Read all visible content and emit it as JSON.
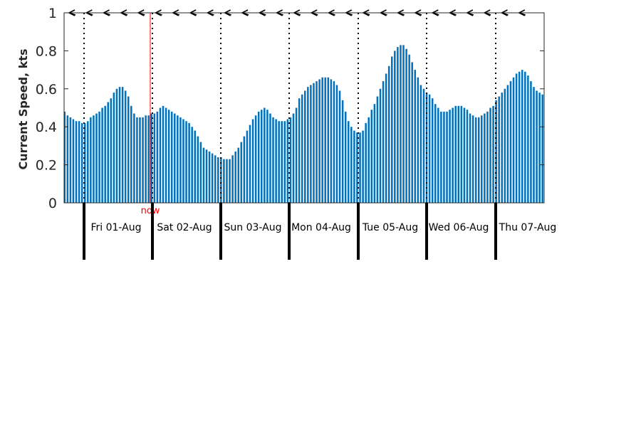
{
  "chart_data": {
    "type": "bar",
    "ylabel": "Current Speed, kts",
    "ylim": [
      0,
      1
    ],
    "yticks": [
      "0",
      "0.2",
      "0.4",
      "0.6",
      "0.8",
      "1"
    ],
    "days": [
      "Fri 01-Aug",
      "Sat 02-Aug",
      "Sun 03-Aug",
      "Mon 04-Aug",
      "Tue 05-Aug",
      "Wed 06-Aug",
      "Thu 07-Aug"
    ],
    "now_label": "now",
    "bar_color": "#0072bd",
    "now_color": "#ff0000",
    "values": [
      0.48,
      0.46,
      0.45,
      0.44,
      0.43,
      0.43,
      0.42,
      0.42,
      0.43,
      0.45,
      0.46,
      0.47,
      0.48,
      0.5,
      0.51,
      0.53,
      0.55,
      0.58,
      0.6,
      0.61,
      0.61,
      0.59,
      0.56,
      0.51,
      0.47,
      0.45,
      0.45,
      0.45,
      0.46,
      0.46,
      0.47,
      0.47,
      0.48,
      0.5,
      0.51,
      0.5,
      0.49,
      0.48,
      0.47,
      0.46,
      0.45,
      0.44,
      0.43,
      0.42,
      0.4,
      0.38,
      0.35,
      0.32,
      0.29,
      0.28,
      0.27,
      0.26,
      0.25,
      0.24,
      0.24,
      0.23,
      0.23,
      0.23,
      0.25,
      0.27,
      0.29,
      0.32,
      0.35,
      0.38,
      0.41,
      0.44,
      0.46,
      0.48,
      0.49,
      0.5,
      0.49,
      0.47,
      0.45,
      0.44,
      0.43,
      0.43,
      0.43,
      0.44,
      0.45,
      0.47,
      0.5,
      0.55,
      0.57,
      0.59,
      0.61,
      0.62,
      0.63,
      0.64,
      0.65,
      0.66,
      0.66,
      0.66,
      0.65,
      0.64,
      0.62,
      0.59,
      0.54,
      0.48,
      0.43,
      0.4,
      0.38,
      0.37,
      0.37,
      0.38,
      0.42,
      0.45,
      0.49,
      0.52,
      0.56,
      0.6,
      0.64,
      0.68,
      0.72,
      0.77,
      0.8,
      0.82,
      0.83,
      0.83,
      0.81,
      0.78,
      0.74,
      0.7,
      0.66,
      0.62,
      0.6,
      0.58,
      0.57,
      0.55,
      0.52,
      0.5,
      0.48,
      0.48,
      0.48,
      0.49,
      0.5,
      0.51,
      0.51,
      0.51,
      0.5,
      0.49,
      0.47,
      0.46,
      0.45,
      0.45,
      0.46,
      0.47,
      0.48,
      0.5,
      0.51,
      0.54,
      0.56,
      0.58,
      0.6,
      0.62,
      0.64,
      0.66,
      0.68,
      0.69,
      0.7,
      0.69,
      0.67,
      0.64,
      0.61,
      0.59,
      0.58,
      0.57
    ]
  }
}
